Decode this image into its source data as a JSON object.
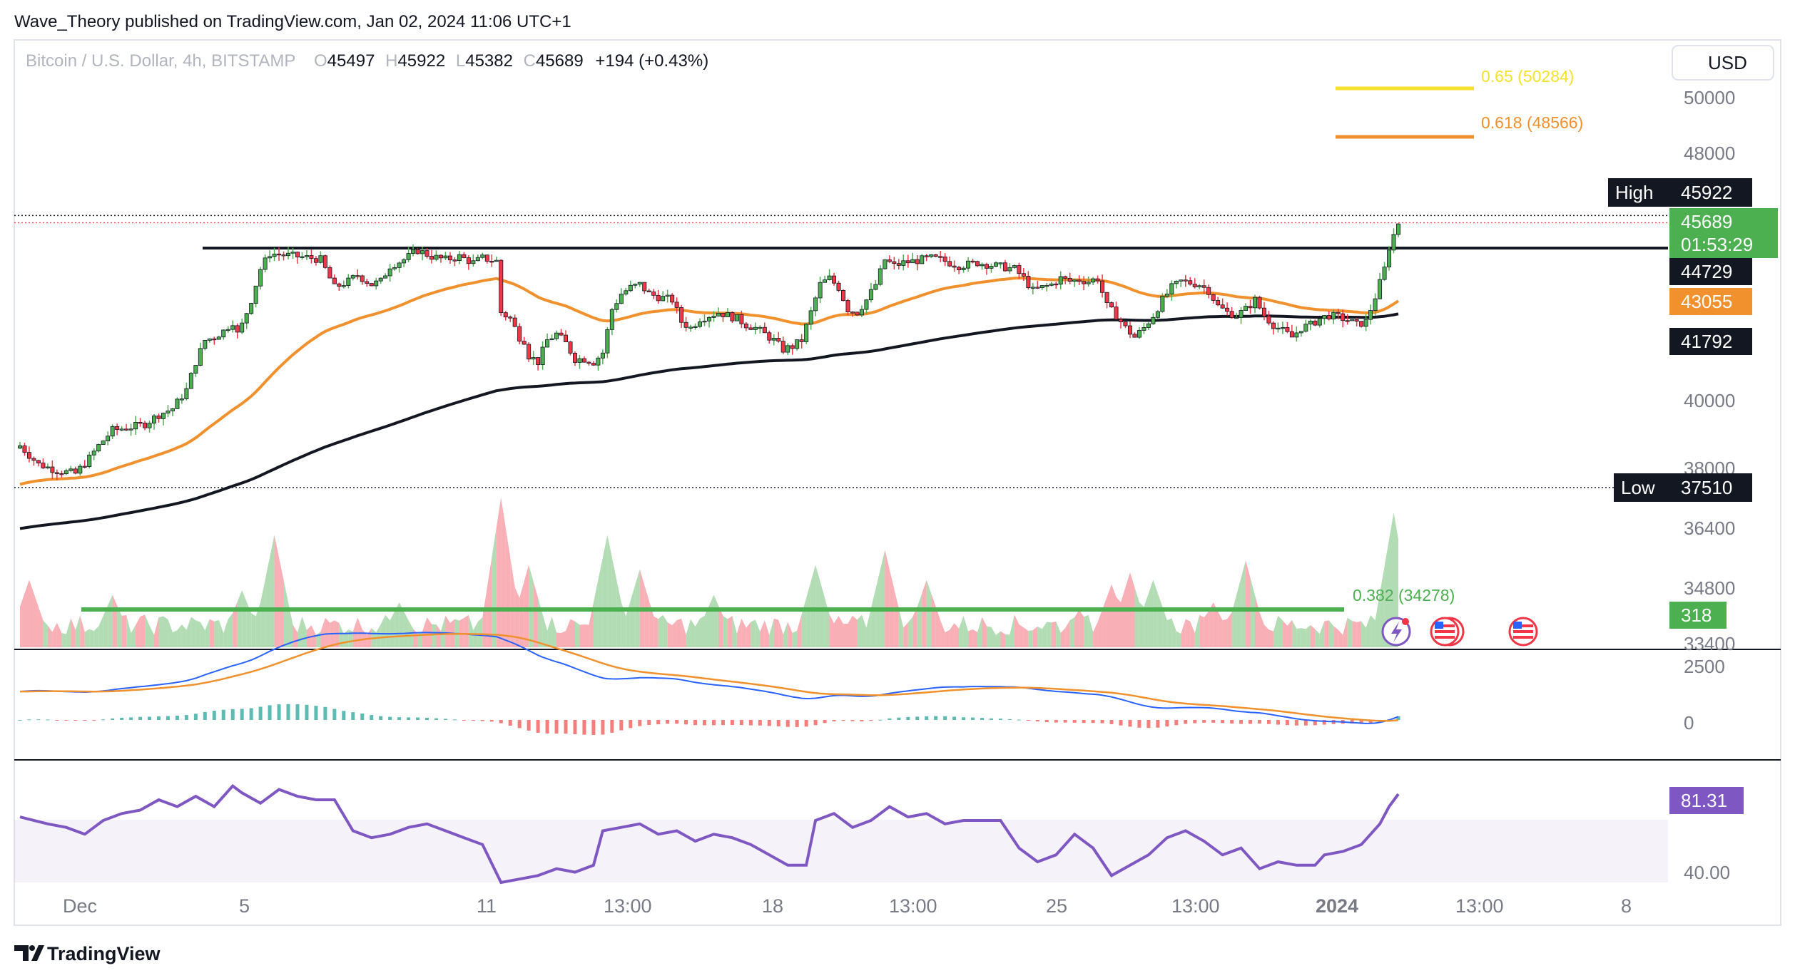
{
  "header": {
    "publisher": "Wave_Theory published on TradingView.com, Jan 02, 2024 11:06 UTC+1",
    "brand": "TradingView"
  },
  "chart_data": {
    "type": "candlestick",
    "symbol_line": "Bitcoin / U.S. Dollar, 4h, BITSTAMP",
    "ohlc": {
      "open_label": "O",
      "open": "45497",
      "high_label": "H",
      "high": "45922",
      "low_label": "L",
      "low": "45382",
      "close_label": "C",
      "close": "45689",
      "change": "+194 (+0.43%)"
    },
    "currency": "USD",
    "price_scale_ticks": [
      "50000",
      "48000",
      "40000",
      "38000",
      "36400",
      "34800",
      "33400"
    ],
    "x_ticks": [
      "Dec",
      "5",
      "11",
      "13:00",
      "18",
      "13:00",
      "25",
      "13:00",
      "2024",
      "13:00",
      "8"
    ],
    "price_markers": {
      "high_label": "High",
      "high": "45922",
      "last": "45689",
      "countdown": "01:53:29",
      "resistance": "44729",
      "ema50": "43055",
      "ema200": "41792",
      "low_label": "Low",
      "low": "37510",
      "volume": "318"
    },
    "fib_levels": [
      {
        "label": "0.65 (50284)",
        "ratio": 0.65,
        "price": 50284,
        "color": "#f5e22b"
      },
      {
        "label": "0.618 (48566)",
        "ratio": 0.618,
        "price": 48566,
        "color": "#f0912e"
      },
      {
        "label": "0.382 (34278)",
        "ratio": 0.382,
        "price": 34278,
        "color": "#4caf50"
      }
    ],
    "resistance_price": 44729,
    "high_price": 45922,
    "low_price": 37510,
    "close_path": [
      [
        0,
        38500
      ],
      [
        4,
        37900
      ],
      [
        8,
        37700
      ],
      [
        12,
        37600
      ],
      [
        15,
        38100
      ],
      [
        17,
        38500
      ],
      [
        20,
        39000
      ],
      [
        24,
        39100
      ],
      [
        27,
        39200
      ],
      [
        30,
        39500
      ],
      [
        33,
        39700
      ],
      [
        36,
        40300
      ],
      [
        38,
        41200
      ],
      [
        40,
        41900
      ],
      [
        42,
        42000
      ],
      [
        44,
        42200
      ],
      [
        46,
        42500
      ],
      [
        47,
        42100
      ],
      [
        48,
        42400
      ],
      [
        50,
        43200
      ],
      [
        52,
        44200
      ],
      [
        54,
        44700
      ],
      [
        57,
        44650
      ],
      [
        60,
        44600
      ],
      [
        63,
        44550
      ],
      [
        65,
        44500
      ],
      [
        68,
        43600
      ],
      [
        71,
        43800
      ],
      [
        73,
        44000
      ],
      [
        76,
        43700
      ],
      [
        78,
        43800
      ],
      [
        80,
        44300
      ],
      [
        83,
        44500
      ],
      [
        86,
        44800
      ],
      [
        89,
        44600
      ],
      [
        92,
        44500
      ],
      [
        95,
        44600
      ],
      [
        98,
        44400
      ],
      [
        100,
        44550
      ],
      [
        103,
        44450
      ],
      [
        104,
        42800
      ],
      [
        106,
        42600
      ],
      [
        108,
        42000
      ],
      [
        109,
        41900
      ],
      [
        110,
        41400
      ],
      [
        112,
        41200
      ],
      [
        114,
        41900
      ],
      [
        116,
        42100
      ],
      [
        118,
        41800
      ],
      [
        120,
        41300
      ],
      [
        122,
        41300
      ],
      [
        124,
        41200
      ],
      [
        126,
        41500
      ],
      [
        128,
        42900
      ],
      [
        130,
        43400
      ],
      [
        132,
        43600
      ],
      [
        134,
        43700
      ],
      [
        136,
        43400
      ],
      [
        138,
        43300
      ],
      [
        141,
        43200
      ],
      [
        143,
        42500
      ],
      [
        145,
        42300
      ],
      [
        147,
        42600
      ],
      [
        149,
        42700
      ],
      [
        151,
        42800
      ],
      [
        153,
        42700
      ],
      [
        155,
        42600
      ],
      [
        157,
        42400
      ],
      [
        159,
        42300
      ],
      [
        161,
        42100
      ],
      [
        163,
        41900
      ],
      [
        165,
        41600
      ],
      [
        167,
        41700
      ],
      [
        169,
        41900
      ],
      [
        171,
        42800
      ],
      [
        173,
        43700
      ],
      [
        175,
        43900
      ],
      [
        177,
        43600
      ],
      [
        179,
        42900
      ],
      [
        181,
        42800
      ],
      [
        183,
        43200
      ],
      [
        185,
        43700
      ],
      [
        187,
        44500
      ],
      [
        189,
        44300
      ],
      [
        191,
        44400
      ],
      [
        193,
        44450
      ],
      [
        195,
        44500
      ],
      [
        197,
        44550
      ],
      [
        199,
        44500
      ],
      [
        201,
        44400
      ],
      [
        203,
        44300
      ],
      [
        205,
        44350
      ],
      [
        207,
        44400
      ],
      [
        209,
        44350
      ],
      [
        211,
        44300
      ],
      [
        213,
        44250
      ],
      [
        215,
        44200
      ],
      [
        217,
        43900
      ],
      [
        219,
        43500
      ],
      [
        221,
        43600
      ],
      [
        223,
        43700
      ],
      [
        225,
        43900
      ],
      [
        227,
        43800
      ],
      [
        229,
        43850
      ],
      [
        231,
        43800
      ],
      [
        233,
        43900
      ],
      [
        235,
        43000
      ],
      [
        237,
        42700
      ],
      [
        239,
        42300
      ],
      [
        241,
        42000
      ],
      [
        243,
        42300
      ],
      [
        245,
        42700
      ],
      [
        247,
        43200
      ],
      [
        249,
        43600
      ],
      [
        251,
        43800
      ],
      [
        253,
        43750
      ],
      [
        255,
        43700
      ],
      [
        257,
        43500
      ],
      [
        259,
        43000
      ],
      [
        261,
        42800
      ],
      [
        263,
        42700
      ],
      [
        265,
        42900
      ],
      [
        267,
        43200
      ],
      [
        269,
        42700
      ],
      [
        271,
        42400
      ],
      [
        273,
        42200
      ],
      [
        275,
        42000
      ],
      [
        277,
        42300
      ],
      [
        279,
        42400
      ],
      [
        281,
        42600
      ],
      [
        283,
        42700
      ],
      [
        285,
        42650
      ],
      [
        287,
        42550
      ],
      [
        289,
        42400
      ],
      [
        291,
        42500
      ],
      [
        293,
        43300
      ],
      [
        295,
        44200
      ],
      [
        296,
        44900
      ],
      [
        297,
        45300
      ],
      [
        298,
        45689
      ]
    ],
    "volume_spikes": [
      {
        "x": 104,
        "v": 1.0,
        "up": false
      },
      {
        "x": 55,
        "v": 0.75,
        "up": true
      },
      {
        "x": 297,
        "v": 0.9,
        "up": true
      },
      {
        "x": 127,
        "v": 0.75,
        "up": true
      },
      {
        "x": 187,
        "v": 0.65,
        "up": true
      },
      {
        "x": 265,
        "v": 0.58,
        "up": false
      },
      {
        "x": 110,
        "v": 0.55,
        "up": false
      },
      {
        "x": 134,
        "v": 0.52,
        "up": false
      },
      {
        "x": 172,
        "v": 0.55,
        "up": true
      },
      {
        "x": 196,
        "v": 0.45,
        "up": false
      },
      {
        "x": 236,
        "v": 0.42,
        "up": false
      },
      {
        "x": 240,
        "v": 0.5,
        "up": true
      },
      {
        "x": 245,
        "v": 0.45,
        "up": false
      },
      {
        "x": 150,
        "v": 0.35,
        "up": true
      },
      {
        "x": 20,
        "v": 0.35,
        "up": true
      },
      {
        "x": 48,
        "v": 0.38,
        "up": true
      },
      {
        "x": 2,
        "v": 0.45,
        "up": false
      },
      {
        "x": 229,
        "v": 0.25,
        "up": true
      },
      {
        "x": 258,
        "v": 0.3,
        "up": true
      },
      {
        "x": 82,
        "v": 0.3,
        "up": false
      }
    ],
    "rsi_path": [
      [
        0,
        68
      ],
      [
        6,
        64
      ],
      [
        10,
        62
      ],
      [
        14,
        58
      ],
      [
        18,
        66
      ],
      [
        22,
        70
      ],
      [
        26,
        72
      ],
      [
        30,
        78
      ],
      [
        34,
        74
      ],
      [
        38,
        80
      ],
      [
        42,
        74
      ],
      [
        46,
        86
      ],
      [
        48,
        82
      ],
      [
        52,
        76
      ],
      [
        56,
        84
      ],
      [
        60,
        80
      ],
      [
        64,
        78
      ],
      [
        68,
        78
      ],
      [
        72,
        60
      ],
      [
        76,
        56
      ],
      [
        80,
        58
      ],
      [
        84,
        62
      ],
      [
        88,
        64
      ],
      [
        92,
        60
      ],
      [
        96,
        56
      ],
      [
        100,
        52
      ],
      [
        104,
        30
      ],
      [
        108,
        32
      ],
      [
        112,
        34
      ],
      [
        116,
        38
      ],
      [
        120,
        36
      ],
      [
        124,
        40
      ],
      [
        126,
        60
      ],
      [
        130,
        62
      ],
      [
        134,
        64
      ],
      [
        138,
        58
      ],
      [
        142,
        60
      ],
      [
        146,
        54
      ],
      [
        150,
        58
      ],
      [
        154,
        56
      ],
      [
        158,
        52
      ],
      [
        162,
        46
      ],
      [
        166,
        40
      ],
      [
        170,
        40
      ],
      [
        172,
        66
      ],
      [
        176,
        70
      ],
      [
        180,
        62
      ],
      [
        184,
        66
      ],
      [
        188,
        74
      ],
      [
        192,
        68
      ],
      [
        196,
        70
      ],
      [
        200,
        64
      ],
      [
        204,
        66
      ],
      [
        208,
        66
      ],
      [
        212,
        66
      ],
      [
        216,
        50
      ],
      [
        220,
        42
      ],
      [
        224,
        46
      ],
      [
        228,
        58
      ],
      [
        232,
        50
      ],
      [
        236,
        34
      ],
      [
        240,
        40
      ],
      [
        244,
        46
      ],
      [
        248,
        56
      ],
      [
        252,
        60
      ],
      [
        256,
        54
      ],
      [
        260,
        46
      ],
      [
        264,
        50
      ],
      [
        268,
        38
      ],
      [
        272,
        42
      ],
      [
        276,
        40
      ],
      [
        280,
        40
      ],
      [
        282,
        46
      ],
      [
        286,
        48
      ],
      [
        290,
        52
      ],
      [
        294,
        64
      ],
      [
        296,
        74
      ],
      [
        298,
        81.31
      ]
    ],
    "rsi": {
      "value": "81.31",
      "ticks": [
        "40.00"
      ]
    },
    "macd": {
      "ticks": [
        "2500",
        "0"
      ]
    }
  }
}
